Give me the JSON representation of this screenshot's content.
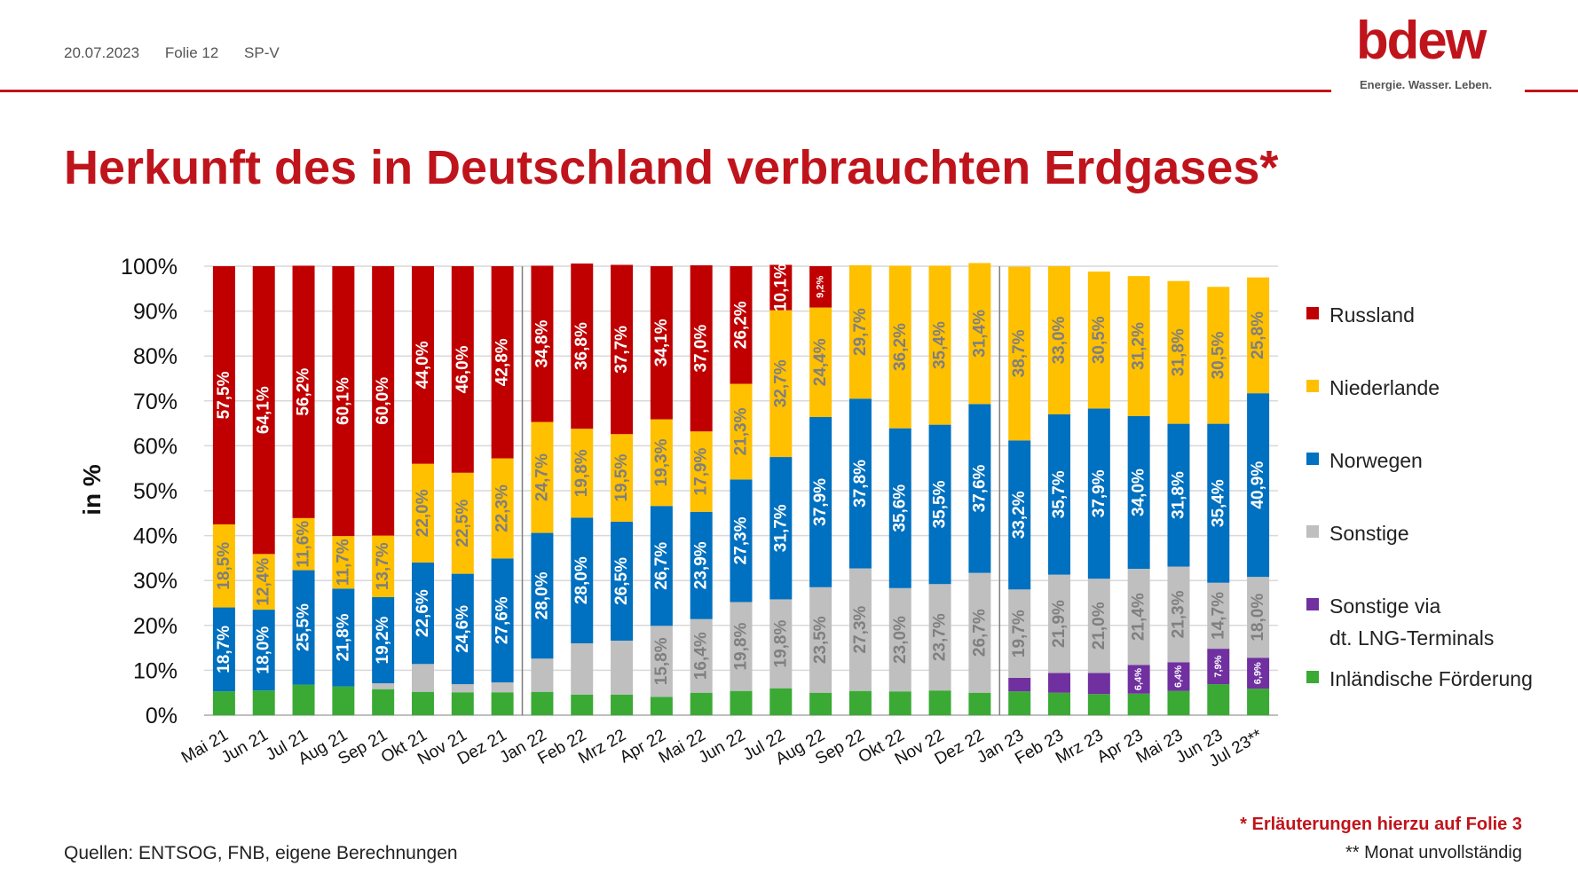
{
  "header": {
    "date": "20.07.2023",
    "folie": "Folie 12",
    "dept": "SP-V"
  },
  "logo": {
    "word": "bdew",
    "tagline": "Energie. Wasser. Leben."
  },
  "page_title": "Herkunft des in Deutschland verbrauchten Erdgases*",
  "colors": {
    "Russland": "#c00000",
    "Niederlande": "#ffc000",
    "Norwegen": "#0070c0",
    "Sonstige": "#bfbfbf",
    "LNG": "#7030a0",
    "Inland": "#3aaa35",
    "brand": "#c0141c"
  },
  "legend": [
    {
      "key": "Russland",
      "label": "Russland"
    },
    {
      "key": "Niederlande",
      "label": "Niederlande"
    },
    {
      "key": "Norwegen",
      "label": "Norwegen"
    },
    {
      "key": "Sonstige",
      "label": "Sonstige"
    },
    {
      "key": "LNG",
      "label": "Sonstige via\ndt. LNG-Terminals"
    },
    {
      "key": "Inland",
      "label": "Inländische Förderung"
    }
  ],
  "footnotes": {
    "note1": "* Erläuterungen hierzu auf Folie 3",
    "note2": "** Monat unvollständig"
  },
  "sources": "Quellen: ENTSOG, FNB, eigene Berechnungen",
  "chart_data": {
    "type": "bar",
    "stacked": true,
    "title": "",
    "xlabel": "",
    "ylabel": "in %",
    "ylim": [
      0,
      100
    ],
    "yticks": [
      "0%",
      "10%",
      "20%",
      "30%",
      "40%",
      "50%",
      "60%",
      "70%",
      "80%",
      "90%",
      "100%"
    ],
    "grid": true,
    "legend_position": "right",
    "categories": [
      "Mai 21",
      "Jun 21",
      "Jul 21",
      "Aug 21",
      "Sep 21",
      "Okt 21",
      "Nov 21",
      "Dez 21",
      "Jan 22",
      "Feb 22",
      "Mrz 22",
      "Apr 22",
      "Mai 22",
      "Jun 22",
      "Jul 22",
      "Aug 22",
      "Sep 22",
      "Okt 22",
      "Nov 22",
      "Dez 22",
      "Jan 23",
      "Feb 23",
      "Mrz 23",
      "Apr 23",
      "Mai 23",
      "Jun 23",
      "Jul 23**"
    ],
    "year_separators_after": [
      "Dez 21",
      "Dez 22"
    ],
    "series": [
      {
        "name": "Inländische Förderung",
        "key": "Inland",
        "values": [
          5.3,
          5.5,
          6.8,
          6.4,
          5.8,
          5.2,
          5.1,
          5.1,
          5.2,
          4.6,
          4.6,
          4.1,
          5.0,
          5.4,
          6.0,
          5.0,
          5.4,
          5.3,
          5.5,
          5.0,
          5.3,
          5.0,
          4.7,
          4.8,
          5.4,
          6.9,
          5.9
        ],
        "labels": [
          "",
          "",
          "",
          "",
          "",
          "",
          "",
          "",
          "",
          "",
          "",
          "",
          "",
          "",
          "",
          "",
          "",
          "",
          "",
          "",
          "",
          "",
          "",
          "",
          "",
          "",
          ""
        ]
      },
      {
        "name": "Sonstige via dt. LNG-Terminals",
        "key": "LNG",
        "values": [
          0,
          0,
          0,
          0,
          0,
          0,
          0,
          0,
          0,
          0,
          0,
          0,
          0,
          0,
          0,
          0,
          0,
          0,
          0,
          0,
          3.0,
          4.4,
          4.7,
          6.4,
          6.4,
          7.9,
          6.9
        ],
        "labels": [
          "",
          "",
          "",
          "",
          "",
          "",
          "",
          "",
          "",
          "",
          "",
          "",
          "",
          "",
          "",
          "",
          "",
          "",
          "",
          "",
          "",
          "",
          "",
          "6,4%",
          "6,4%",
          "7,9%",
          "6,9%"
        ]
      },
      {
        "name": "Sonstige",
        "key": "Sonstige",
        "values": [
          0,
          0,
          0,
          0,
          1.3,
          6.2,
          1.8,
          2.2,
          7.4,
          11.4,
          12.0,
          15.8,
          16.4,
          19.8,
          19.8,
          23.5,
          27.3,
          23.0,
          23.7,
          26.7,
          19.7,
          21.9,
          21.0,
          21.4,
          21.3,
          14.7,
          18.0
        ],
        "labels": [
          "",
          "",
          "",
          "",
          "",
          "",
          "",
          "",
          "",
          "",
          "",
          "15,8%",
          "16,4%",
          "19,8%",
          "19,8%",
          "23,5%",
          "27,3%",
          "23,0%",
          "23,7%",
          "26,7%",
          "19,7%",
          "21,9%",
          "21,0%",
          "21,4%",
          "21,3%",
          "14,7%",
          "18,0%"
        ]
      },
      {
        "name": "Norwegen",
        "key": "Norwegen",
        "values": [
          18.7,
          18.0,
          25.5,
          21.8,
          19.2,
          22.6,
          24.6,
          27.6,
          28.0,
          28.0,
          26.5,
          26.7,
          23.9,
          27.3,
          31.7,
          37.9,
          37.8,
          35.6,
          35.5,
          37.6,
          33.2,
          35.7,
          37.9,
          34.0,
          31.8,
          35.4,
          40.9
        ],
        "labels": [
          "18,7%",
          "18,0%",
          "25,5%",
          "21,8%",
          "19,2%",
          "22,6%",
          "24,6%",
          "27,6%",
          "28,0%",
          "28,0%",
          "26,5%",
          "26,7%",
          "23,9%",
          "27,3%",
          "31,7%",
          "37,9%",
          "37,8%",
          "35,6%",
          "35,5%",
          "37,6%",
          "33,2%",
          "35,7%",
          "37,9%",
          "34,0%",
          "31,8%",
          "35,4%",
          "40,9%"
        ]
      },
      {
        "name": "Niederlande",
        "key": "Niederlande",
        "values": [
          18.5,
          12.4,
          11.6,
          11.7,
          13.7,
          22.0,
          22.5,
          22.3,
          24.7,
          19.8,
          19.5,
          19.3,
          17.9,
          21.3,
          32.7,
          24.4,
          29.7,
          36.2,
          35.4,
          31.4,
          38.7,
          33.0,
          30.5,
          31.2,
          31.8,
          30.5,
          25.8
        ],
        "labels": [
          "18,5%",
          "12,4%",
          "11,6%",
          "11,7%",
          "13,7%",
          "22,0%",
          "22,5%",
          "22,3%",
          "24,7%",
          "19,8%",
          "19,5%",
          "19,3%",
          "17,9%",
          "21,3%",
          "32,7%",
          "24,4%",
          "29,7%",
          "36,2%",
          "35,4%",
          "31,4%",
          "38,7%",
          "33,0%",
          "30,5%",
          "31,2%",
          "31,8%",
          "30,5%",
          "25,8%"
        ]
      },
      {
        "name": "Russland",
        "key": "Russland",
        "values": [
          57.5,
          64.1,
          56.2,
          60.1,
          60.0,
          44.0,
          46.0,
          42.8,
          34.8,
          36.8,
          37.7,
          34.1,
          37.0,
          26.2,
          10.1,
          9.2,
          0,
          0,
          0,
          0,
          0,
          0,
          0,
          0,
          0,
          0,
          0
        ],
        "labels": [
          "57,5%",
          "64,1%",
          "56,2%",
          "60,1%",
          "60,0%",
          "44,0%",
          "46,0%",
          "42,8%",
          "34,8%",
          "36,8%",
          "37,7%",
          "34,1%",
          "37,0%",
          "26,2%",
          "10,1%",
          "9,2%",
          "",
          "",
          "",
          "",
          "",
          "",
          "",
          "",
          "",
          "",
          ""
        ]
      }
    ]
  }
}
